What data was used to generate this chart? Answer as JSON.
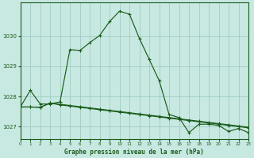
{
  "title": "Graphe pression niveau de la mer (hPa)",
  "bg_color": "#c8e8e2",
  "line_color": "#1a5c1a",
  "grid_color": "#98c8be",
  "text_color": "#1a5c1a",
  "xlim": [
    0,
    23
  ],
  "ylim": [
    1026.6,
    1031.1
  ],
  "yticks": [
    1027,
    1028,
    1029,
    1030
  ],
  "xticks": [
    0,
    1,
    2,
    3,
    4,
    5,
    6,
    7,
    8,
    9,
    10,
    11,
    12,
    13,
    14,
    15,
    16,
    17,
    18,
    19,
    20,
    21,
    22,
    23
  ],
  "series_main": [
    1027.65,
    1028.2,
    1027.75,
    1027.75,
    1027.82,
    1029.55,
    1029.52,
    1029.78,
    1030.02,
    1030.48,
    1030.82,
    1030.72,
    1029.92,
    1029.22,
    1028.52,
    1027.4,
    1027.3,
    1026.8,
    1027.08,
    1027.08,
    1027.04,
    1026.84,
    1026.94,
    1026.8
  ],
  "series_flat1": [
    1027.65,
    1027.65,
    1027.64,
    1027.78,
    1027.74,
    1027.7,
    1027.66,
    1027.62,
    1027.58,
    1027.54,
    1027.5,
    1027.46,
    1027.42,
    1027.38,
    1027.34,
    1027.3,
    1027.26,
    1027.22,
    1027.18,
    1027.14,
    1027.1,
    1027.06,
    1027.02,
    1026.98
  ],
  "series_flat2": [
    1027.65,
    1027.65,
    1027.64,
    1027.78,
    1027.72,
    1027.68,
    1027.64,
    1027.6,
    1027.56,
    1027.52,
    1027.48,
    1027.44,
    1027.4,
    1027.36,
    1027.32,
    1027.28,
    1027.24,
    1027.2,
    1027.16,
    1027.12,
    1027.08,
    1027.04,
    1027.0,
    1026.96
  ]
}
